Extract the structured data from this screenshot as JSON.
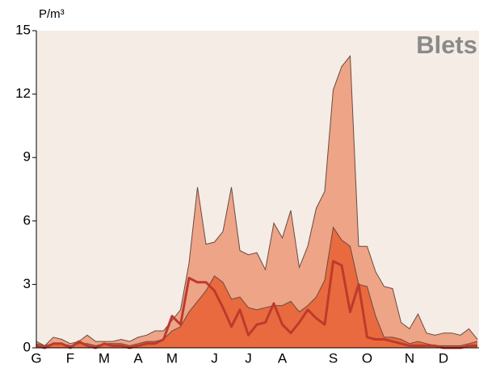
{
  "chart_data": {
    "type": "area",
    "title": "Blets",
    "y_label": "P/m³",
    "categories": [
      "G",
      null,
      null,
      null,
      "F",
      null,
      null,
      null,
      "M",
      null,
      null,
      null,
      "A",
      null,
      null,
      null,
      "M",
      null,
      null,
      null,
      null,
      "J",
      null,
      null,
      null,
      "J",
      null,
      null,
      null,
      "A",
      null,
      null,
      null,
      null,
      null,
      "S",
      null,
      null,
      null,
      "O",
      null,
      null,
      null,
      null,
      "N",
      null,
      null,
      null,
      "D",
      null,
      null,
      null,
      null
    ],
    "series": [
      {
        "type": "area",
        "color": "#eea487",
        "values": [
          0.3,
          0.1,
          0.5,
          0.4,
          0.2,
          0.3,
          0.6,
          0.3,
          0.3,
          0.3,
          0.4,
          0.3,
          0.5,
          0.6,
          0.8,
          0.8,
          1.3,
          1.8,
          4.0,
          7.6,
          4.9,
          5.0,
          5.5,
          7.6,
          4.6,
          4.4,
          4.5,
          3.7,
          5.9,
          5.2,
          6.5,
          3.8,
          4.8,
          6.6,
          7.4,
          12.2,
          13.3,
          13.8,
          4.8,
          4.8,
          3.6,
          2.9,
          2.8,
          1.2,
          0.9,
          1.6,
          0.7,
          0.6,
          0.7,
          0.7,
          0.6,
          0.9,
          0.4
        ]
      },
      {
        "type": "area",
        "color": "#e96a3e",
        "values": [
          0.2,
          0.1,
          0.2,
          0.2,
          0.1,
          0.2,
          0.2,
          0.1,
          0.2,
          0.2,
          0.2,
          0.1,
          0.2,
          0.3,
          0.3,
          0.4,
          0.8,
          1.0,
          1.7,
          2.2,
          2.7,
          3.4,
          3.1,
          2.3,
          2.4,
          1.9,
          1.8,
          1.9,
          2.0,
          2.0,
          2.2,
          1.7,
          2.0,
          2.4,
          3.2,
          5.7,
          5.1,
          4.8,
          3.0,
          2.9,
          1.5,
          0.5,
          0.5,
          0.4,
          0.2,
          0.3,
          0.2,
          0.1,
          0.1,
          0.1,
          0.1,
          0.2,
          0.3
        ]
      },
      {
        "type": "line",
        "color": "#bd3a2c",
        "values": [
          0.1,
          0.0,
          0.2,
          0.2,
          0.0,
          0.3,
          0.1,
          0.0,
          0.2,
          0.1,
          0.1,
          0.0,
          0.1,
          0.2,
          0.2,
          0.4,
          1.5,
          1.1,
          3.3,
          3.1,
          3.1,
          2.7,
          1.9,
          1.0,
          1.8,
          0.6,
          1.1,
          1.2,
          2.1,
          1.1,
          0.7,
          1.2,
          1.8,
          1.4,
          1.1,
          4.1,
          3.9,
          1.7,
          3.0,
          0.5,
          0.4,
          0.4,
          0.3,
          0.2,
          0.1,
          0.1,
          0.1,
          0.1,
          0.0,
          0.0,
          0.0,
          0.1,
          0.1
        ]
      }
    ],
    "ylim": [
      0,
      15
    ],
    "yticks": [
      0,
      3,
      6,
      9,
      12,
      15
    ]
  }
}
